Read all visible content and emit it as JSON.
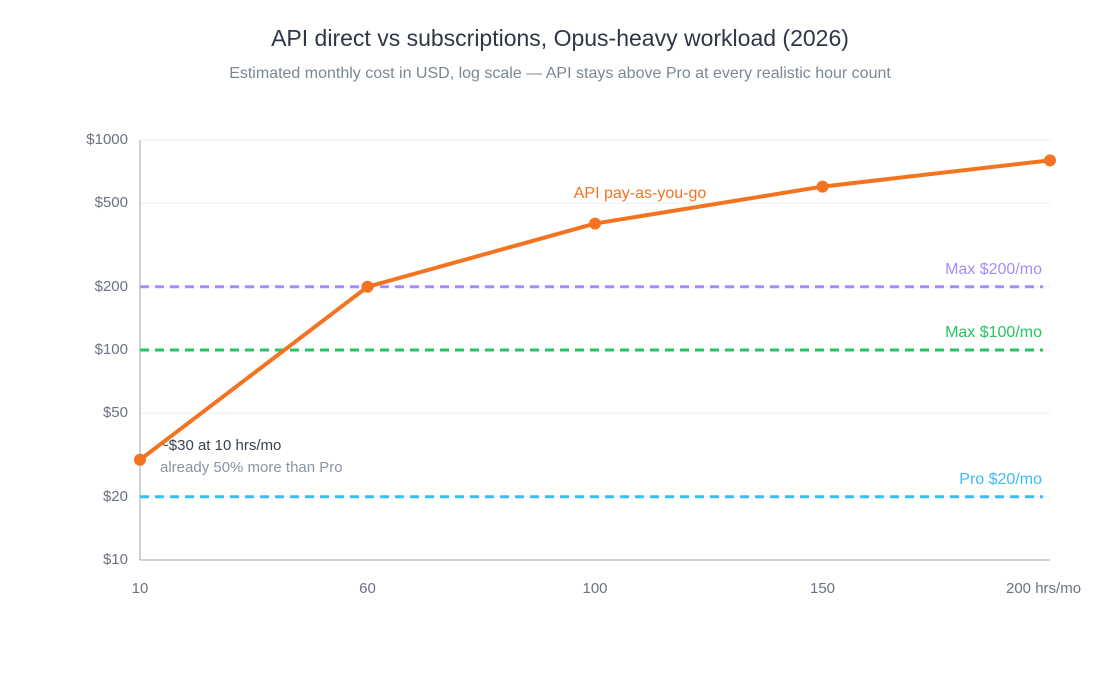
{
  "chart_data": {
    "type": "line",
    "title": "API direct vs subscriptions, Opus-heavy workload (2026)",
    "subtitle": "Estimated monthly cost in USD, log scale — API stays above Pro at every realistic hour count",
    "categories": [
      "10",
      "60",
      "100",
      "150",
      "200 hrs/mo"
    ],
    "series": [
      {
        "name": "API pay-as-you-go",
        "color": "#f47321",
        "values": [
          30,
          200,
          400,
          600,
          800
        ]
      }
    ],
    "reference_lines": [
      {
        "name": "Max $200/mo",
        "value": 200,
        "color": "#a78bfa"
      },
      {
        "name": "Max $100/mo",
        "value": 100,
        "color": "#22c55e"
      },
      {
        "name": "Pro $20/mo",
        "value": 20,
        "color": "#38bdf8"
      }
    ],
    "annotations": [
      "~$30 at 10 hrs/mo",
      "already 50% more than Pro"
    ],
    "ylim": [
      10,
      1000
    ],
    "log_scale": true,
    "yticks": [
      {
        "value": 10,
        "label": "$10"
      },
      {
        "value": 20,
        "label": "$20"
      },
      {
        "value": 50,
        "label": "$50"
      },
      {
        "value": 100,
        "label": "$100"
      },
      {
        "value": 200,
        "label": "$200"
      },
      {
        "value": 500,
        "label": "$500"
      },
      {
        "value": 1000,
        "label": "$1000"
      }
    ],
    "grid": true
  }
}
